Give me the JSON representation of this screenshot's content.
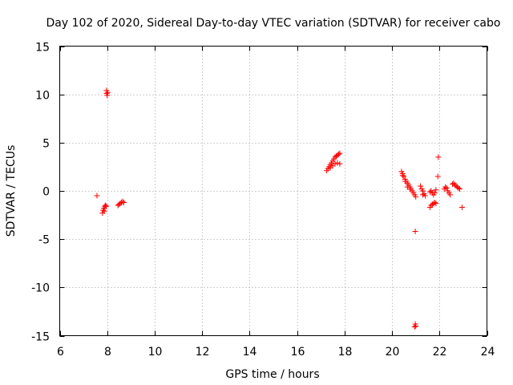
{
  "chart_data": {
    "type": "scatter",
    "title": "Day 102 of 2020, Sidereal Day-to-day VTEC variation (SDTVAR) for receiver cabo",
    "xlabel": "GPS time / hours",
    "ylabel": "SDTVAR / TECUs",
    "xlim": [
      6,
      24
    ],
    "ylim": [
      -15,
      15
    ],
    "xticks": [
      6,
      8,
      10,
      12,
      14,
      16,
      18,
      20,
      22,
      24
    ],
    "yticks": [
      -15,
      -10,
      -5,
      0,
      5,
      10,
      15
    ],
    "xtick_labels": [
      "6",
      "8",
      "10",
      "12",
      "14",
      "16",
      "18",
      "20",
      "22",
      "24"
    ],
    "ytick_labels": [
      "-15",
      "-10",
      "-5",
      "0",
      "5",
      "10",
      "15"
    ],
    "grid": true,
    "marker": "+",
    "color": "#ff0000",
    "series": [
      {
        "name": "SDTVAR",
        "points": [
          [
            7.57,
            -0.5
          ],
          [
            7.97,
            10.4
          ],
          [
            7.98,
            10.1
          ],
          [
            8.0,
            9.9
          ],
          [
            8.02,
            10.2
          ],
          [
            7.8,
            -2.3
          ],
          [
            7.83,
            -2.0
          ],
          [
            7.86,
            -1.8
          ],
          [
            7.9,
            -1.6
          ],
          [
            7.93,
            -1.5
          ],
          [
            7.96,
            -1.6
          ],
          [
            7.88,
            -2.1
          ],
          [
            8.45,
            -1.5
          ],
          [
            8.5,
            -1.4
          ],
          [
            8.55,
            -1.3
          ],
          [
            8.6,
            -1.2
          ],
          [
            8.65,
            -1.1
          ],
          [
            8.7,
            -1.2
          ],
          [
            17.25,
            2.1
          ],
          [
            17.3,
            2.3
          ],
          [
            17.35,
            2.5
          ],
          [
            17.4,
            2.7
          ],
          [
            17.45,
            2.9
          ],
          [
            17.5,
            3.1
          ],
          [
            17.55,
            3.3
          ],
          [
            17.6,
            3.5
          ],
          [
            17.65,
            3.6
          ],
          [
            17.7,
            3.7
          ],
          [
            17.75,
            3.8
          ],
          [
            17.8,
            3.9
          ],
          [
            17.4,
            2.4
          ],
          [
            17.5,
            2.6
          ],
          [
            17.6,
            2.8
          ],
          [
            17.7,
            2.9
          ],
          [
            17.8,
            2.8
          ],
          [
            20.4,
            2.0
          ],
          [
            20.45,
            1.8
          ],
          [
            20.5,
            1.5
          ],
          [
            20.55,
            1.2
          ],
          [
            20.6,
            1.0
          ],
          [
            20.65,
            0.8
          ],
          [
            20.7,
            0.6
          ],
          [
            20.75,
            0.4
          ],
          [
            20.8,
            0.2
          ],
          [
            20.85,
            0.0
          ],
          [
            20.9,
            -0.2
          ],
          [
            20.95,
            -0.4
          ],
          [
            21.0,
            -0.6
          ],
          [
            20.45,
            1.6
          ],
          [
            20.55,
            1.0
          ],
          [
            20.65,
            0.4
          ],
          [
            20.75,
            0.2
          ],
          [
            20.98,
            -4.2
          ],
          [
            20.98,
            -13.8
          ],
          [
            21.0,
            -14.0
          ],
          [
            20.95,
            -14.1
          ],
          [
            21.2,
            0.5
          ],
          [
            21.25,
            0.2
          ],
          [
            21.3,
            0.0
          ],
          [
            21.35,
            -0.3
          ],
          [
            21.4,
            -0.5
          ],
          [
            21.3,
            -0.4
          ],
          [
            21.6,
            -0.1
          ],
          [
            21.65,
            0.0
          ],
          [
            21.7,
            -0.2
          ],
          [
            21.75,
            -0.4
          ],
          [
            21.8,
            -0.2
          ],
          [
            21.85,
            0.1
          ],
          [
            21.6,
            -1.7
          ],
          [
            21.65,
            -1.5
          ],
          [
            21.7,
            -1.4
          ],
          [
            21.75,
            -1.3
          ],
          [
            21.8,
            -1.2
          ],
          [
            21.85,
            -1.3
          ],
          [
            21.95,
            3.5
          ],
          [
            21.93,
            1.5
          ],
          [
            22.2,
            0.2
          ],
          [
            22.25,
            0.4
          ],
          [
            22.3,
            0.3
          ],
          [
            22.35,
            0.0
          ],
          [
            22.4,
            -0.2
          ],
          [
            22.45,
            -0.4
          ],
          [
            22.55,
            0.7
          ],
          [
            22.6,
            0.8
          ],
          [
            22.65,
            0.6
          ],
          [
            22.7,
            0.5
          ],
          [
            22.75,
            0.4
          ],
          [
            22.8,
            0.3
          ],
          [
            22.85,
            0.2
          ],
          [
            22.95,
            -1.7
          ]
        ]
      }
    ]
  }
}
